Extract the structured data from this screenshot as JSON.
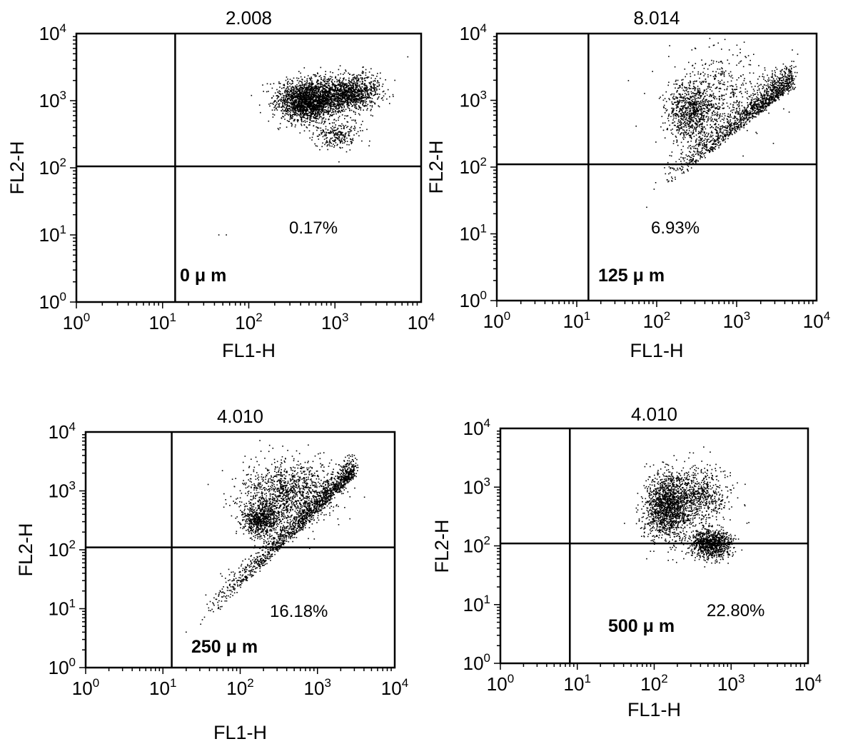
{
  "chart_data": [
    {
      "type": "scatter",
      "title": "2.008",
      "xlabel": "FL1-H",
      "ylabel": "FL2-H",
      "x_scale": "log",
      "y_scale": "log",
      "xlim": [
        1,
        10000
      ],
      "ylim": [
        1,
        10000
      ],
      "x_ticks": [
        "10^0",
        "10^1",
        "10^2",
        "10^3",
        "10^4"
      ],
      "y_ticks": [
        "10^0",
        "10^1",
        "10^2",
        "10^3",
        "10^4"
      ],
      "quadrant_gate": {
        "x": 14,
        "y": 105
      },
      "quadrant_annotation": "0.17%",
      "dose_label": "0  μ m",
      "populations": [
        {
          "center": [
            500,
            1000
          ],
          "spread": [
            0.18,
            0.15
          ],
          "count": 2200
        },
        {
          "center": [
            1500,
            1300
          ],
          "spread": [
            0.17,
            0.13
          ],
          "count": 1100
        },
        {
          "center": [
            1100,
            300
          ],
          "spread": [
            0.13,
            0.1
          ],
          "count": 250
        }
      ],
      "outliers": [
        [
          45,
          10
        ],
        [
          55,
          10
        ],
        [
          7000,
          4500
        ]
      ]
    },
    {
      "type": "scatter",
      "title": "8.014",
      "xlabel": "FL1-H",
      "ylabel": "FL2-H",
      "x_scale": "log",
      "y_scale": "log",
      "xlim": [
        1,
        10000
      ],
      "ylim": [
        1,
        10000
      ],
      "x_ticks": [
        "10^0",
        "10^1",
        "10^2",
        "10^3",
        "10^4"
      ],
      "y_ticks": [
        "10^0",
        "10^1",
        "10^2",
        "10^3",
        "10^4"
      ],
      "quadrant_gate": {
        "x": 14,
        "y": 110
      },
      "quadrant_annotation": "6.93%",
      "dose_label": "125  μ m",
      "populations": [
        {
          "center": [
            280,
            650
          ],
          "spread": [
            0.16,
            0.22
          ],
          "count": 900
        },
        {
          "center": [
            700,
            1500
          ],
          "spread": [
            0.3,
            0.3
          ],
          "count": 350
        }
      ],
      "diagonal": {
        "from": [
          100,
          40
        ],
        "to": [
          5000,
          1600
        ],
        "count": 1400
      },
      "outliers": [
        [
          75,
          25
        ],
        [
          4000,
          3000
        ]
      ]
    },
    {
      "type": "scatter",
      "title": "4.010",
      "xlabel": "FL1-H",
      "ylabel": "FL2-H",
      "x_scale": "log",
      "y_scale": "log",
      "xlim": [
        1,
        10000
      ],
      "ylim": [
        1,
        10000
      ],
      "x_ticks": [
        "10^0",
        "10^1",
        "10^2",
        "10^3",
        "10^4"
      ],
      "y_ticks": [
        "10^0",
        "10^1",
        "10^2",
        "10^3",
        "10^4"
      ],
      "quadrant_gate": {
        "x": 13,
        "y": 110
      },
      "quadrant_annotation": "16.18%",
      "dose_label": "250  μ m",
      "populations": [
        {
          "center": [
            180,
            320
          ],
          "spread": [
            0.12,
            0.14
          ],
          "count": 700
        },
        {
          "center": [
            400,
            900
          ],
          "spread": [
            0.3,
            0.28
          ],
          "count": 1200
        }
      ],
      "diagonal": {
        "from": [
          30,
          5
        ],
        "to": [
          3000,
          1800
        ],
        "count": 1600
      },
      "outliers": [
        [
          20,
          4
        ],
        [
          3000,
          4000
        ]
      ]
    },
    {
      "type": "scatter",
      "title": "4.010",
      "xlabel": "FL1-H",
      "ylabel": "FL2-H",
      "x_scale": "log",
      "y_scale": "log",
      "xlim": [
        1,
        10000
      ],
      "ylim": [
        1,
        10000
      ],
      "x_ticks": [
        "10^0",
        "10^1",
        "10^2",
        "10^3",
        "10^4"
      ],
      "y_ticks": [
        "10^0",
        "10^1",
        "10^2",
        "10^3",
        "10^4"
      ],
      "quadrant_gate": {
        "x": 8,
        "y": 110
      },
      "quadrant_annotation": "22.80%",
      "dose_label": "500  μ m",
      "populations": [
        {
          "center": [
            150,
            450
          ],
          "spread": [
            0.15,
            0.28
          ],
          "count": 1500
        },
        {
          "center": [
            350,
            700
          ],
          "spread": [
            0.2,
            0.25
          ],
          "count": 700
        },
        {
          "center": [
            550,
            110
          ],
          "spread": [
            0.14,
            0.12
          ],
          "count": 900
        }
      ],
      "outliers": [
        [
          1500,
          500
        ],
        [
          1700,
          250
        ]
      ]
    }
  ]
}
